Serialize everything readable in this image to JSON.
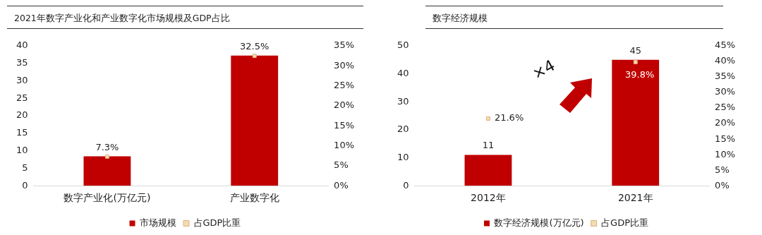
{
  "chart_data": [
    {
      "type": "bar",
      "title": "2021年数字产业化和产业数字化市场规模及GDP占比",
      "categories": [
        "数字产业化(万亿元)",
        "产业数字化"
      ],
      "series": [
        {
          "name": "市场规模",
          "color": "#c00000",
          "values": [
            8.4,
            37.2
          ]
        },
        {
          "name": "占GDP比重",
          "type": "scatter",
          "axis": "y2",
          "marker": "square",
          "color": "#f2dcb4",
          "x": [
            "数字产业化(万亿元)",
            "产业数字化"
          ],
          "values": [
            7.3,
            32.5
          ],
          "value_labels": [
            "7.3%",
            "32.5%"
          ]
        }
      ],
      "ylim": [
        0,
        40
      ],
      "yticks": [
        0,
        5,
        10,
        15,
        20,
        25,
        30,
        35,
        40
      ],
      "y2lim": [
        0,
        35
      ],
      "y2ticks": [
        {
          "value": 0,
          "label": "0%"
        },
        {
          "value": 5,
          "label": "5%"
        },
        {
          "value": 10,
          "label": "10%"
        },
        {
          "value": 15,
          "label": "15%"
        },
        {
          "value": 20,
          "label": "20%"
        },
        {
          "value": 25,
          "label": "25%"
        },
        {
          "value": 30,
          "label": "30%"
        },
        {
          "value": 35,
          "label": "35%"
        }
      ],
      "grid": false,
      "legend": "bottom"
    },
    {
      "type": "bar",
      "title": "数字经济规模",
      "categories": [
        "2012年",
        "2021年"
      ],
      "series": [
        {
          "name": "数字经济规模(万亿元)",
          "color": "#c00000",
          "values": [
            11,
            45
          ],
          "value_labels": [
            "11",
            "45"
          ]
        },
        {
          "name": "占GDP比重",
          "type": "scatter",
          "axis": "y2",
          "marker": "square",
          "color": "#f2dcb4",
          "x": [
            "2012年",
            "2021年"
          ],
          "values": [
            21.6,
            39.8
          ],
          "value_labels": [
            "21.6%",
            "39.8%"
          ]
        }
      ],
      "ylim": [
        0,
        50
      ],
      "yticks": [
        0,
        10,
        20,
        30,
        40,
        50
      ],
      "y2lim": [
        0,
        45
      ],
      "y2ticks": [
        {
          "value": 0,
          "label": "0%"
        },
        {
          "value": 5,
          "label": "5%"
        },
        {
          "value": 10,
          "label": "10%"
        },
        {
          "value": 15,
          "label": "15%"
        },
        {
          "value": 20,
          "label": "20%"
        },
        {
          "value": 25,
          "label": "25%"
        },
        {
          "value": 30,
          "label": "30%"
        },
        {
          "value": 35,
          "label": "35%"
        },
        {
          "value": 40,
          "label": "40%"
        },
        {
          "value": 45,
          "label": "45%"
        }
      ],
      "annotations": [
        "×4"
      ],
      "grid": false,
      "legend": "bottom"
    }
  ]
}
